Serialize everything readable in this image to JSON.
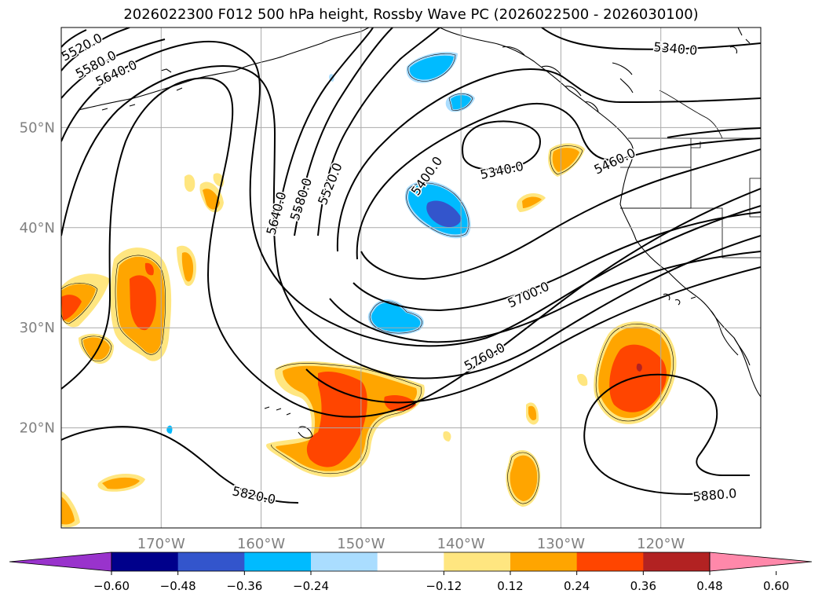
{
  "title": "2026022300 F012 500 hPa height, Rossby Wave PC (2026022500 - 2026030100)",
  "map": {
    "lat_labels": [
      {
        "text": "50°N",
        "lat": 50
      },
      {
        "text": "40°N",
        "lat": 40
      },
      {
        "text": "30°N",
        "lat": 30
      },
      {
        "text": "20°N",
        "lat": 20
      }
    ],
    "lon_labels": [
      {
        "text": "170°W",
        "lon": -170
      },
      {
        "text": "160°W",
        "lon": -160
      },
      {
        "text": "150°W",
        "lon": -150
      },
      {
        "text": "140°W",
        "lon": -140
      },
      {
        "text": "130°W",
        "lon": -130
      },
      {
        "text": "120°W",
        "lon": -120
      }
    ],
    "lon_range": [
      -180,
      -110
    ],
    "lat_range": [
      10,
      60
    ],
    "gridlines": true,
    "contour_labels": [
      "5520.0",
      "5580.0",
      "5640.0",
      "5340.0",
      "5400.0",
      "5460.0",
      "5700.0",
      "5760.0",
      "5820.0",
      "5880.0"
    ]
  },
  "colorbar": {
    "ticks": [
      "−0.60",
      "−0.48",
      "−0.36",
      "−0.24",
      "−0.12",
      "0.12",
      "0.24",
      "0.36",
      "0.48",
      "0.60"
    ],
    "colors": [
      "#9933cc",
      "#00008b",
      "#3355cc",
      "#00bbff",
      "#aaddff",
      "#ffffff",
      "#ffe680",
      "#ffa500",
      "#ff4500",
      "#b22222",
      "#ff88aa"
    ]
  },
  "colors": {
    "land_outline": "#000000",
    "grid": "#aaaaaa",
    "axis_label": "#808080"
  }
}
